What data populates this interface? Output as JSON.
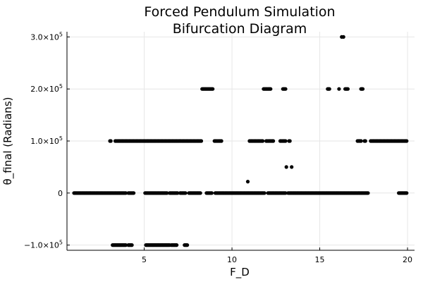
{
  "chart_data": {
    "type": "scatter",
    "title_lines": [
      "Forced Pendulum Simulation",
      "Bifurcation Diagram"
    ],
    "xlabel": "F_D",
    "ylabel": "θ_final (Radians)",
    "xlim": [
      0.6,
      20.4
    ],
    "ylim": [
      -110000,
      310000
    ],
    "grid": true,
    "legend": "none",
    "marker_color": "#000000",
    "x_ticks": [
      {
        "value": 5,
        "label": "5"
      },
      {
        "value": 10,
        "label": "10"
      },
      {
        "value": 15,
        "label": "15"
      },
      {
        "value": 20,
        "label": "20"
      }
    ],
    "y_ticks": [
      {
        "value": -100000,
        "mant": "−1.0×10",
        "exp": "5"
      },
      {
        "value": 0,
        "mant": "0",
        "exp": ""
      },
      {
        "value": 100000,
        "mant": "1.0×10",
        "exp": "5"
      },
      {
        "value": 200000,
        "mant": "2.0×10",
        "exp": "5"
      },
      {
        "value": 300000,
        "mant": "3.0×10",
        "exp": "5"
      }
    ],
    "runs": [
      {
        "y": 0,
        "x_from": 1.0,
        "x_to": 3.95
      },
      {
        "y": 0,
        "x_from": 4.1,
        "x_to": 4.4
      },
      {
        "y": 0,
        "x_from": 5.05,
        "x_to": 6.3
      },
      {
        "y": 0,
        "x_from": 6.45,
        "x_to": 6.9
      },
      {
        "y": 0,
        "x_from": 7.05,
        "x_to": 7.35
      },
      {
        "y": 0,
        "x_from": 7.55,
        "x_to": 8.2
      },
      {
        "y": 0,
        "x_from": 8.55,
        "x_to": 8.85
      },
      {
        "y": 0,
        "x_from": 9.05,
        "x_to": 11.85
      },
      {
        "y": 0,
        "x_from": 12.05,
        "x_to": 13.05
      },
      {
        "y": 0,
        "x_from": 13.2,
        "x_to": 17.75
      },
      {
        "y": 0,
        "x_from": 19.5,
        "x_to": 19.95
      },
      {
        "y": 100000,
        "x_from": 3.05,
        "x_to": 3.1
      },
      {
        "y": 100000,
        "x_from": 3.35,
        "x_to": 8.25
      },
      {
        "y": 100000,
        "x_from": 9.0,
        "x_to": 9.4
      },
      {
        "y": 100000,
        "x_from": 11.0,
        "x_to": 11.75
      },
      {
        "y": 100000,
        "x_from": 11.95,
        "x_to": 12.35
      },
      {
        "y": 100000,
        "x_from": 12.75,
        "x_to": 13.05
      },
      {
        "y": 100000,
        "x_from": 13.25,
        "x_to": 13.3
      },
      {
        "y": 100000,
        "x_from": 17.15,
        "x_to": 17.35
      },
      {
        "y": 100000,
        "x_from": 17.55,
        "x_to": 17.6
      },
      {
        "y": 100000,
        "x_from": 17.9,
        "x_to": 19.95
      },
      {
        "y": 200000,
        "x_from": 8.3,
        "x_to": 8.9
      },
      {
        "y": 200000,
        "x_from": 11.8,
        "x_to": 12.2
      },
      {
        "y": 200000,
        "x_from": 12.9,
        "x_to": 13.05
      },
      {
        "y": 200000,
        "x_from": 15.45,
        "x_to": 15.55
      },
      {
        "y": 200000,
        "x_from": 16.45,
        "x_to": 16.6
      },
      {
        "y": 200000,
        "x_from": 17.35,
        "x_to": 17.45
      },
      {
        "y": -100000,
        "x_from": 3.2,
        "x_to": 3.95
      },
      {
        "y": -100000,
        "x_from": 4.1,
        "x_to": 4.3
      },
      {
        "y": -100000,
        "x_from": 5.1,
        "x_to": 6.45
      },
      {
        "y": -100000,
        "x_from": 6.55,
        "x_to": 6.85
      },
      {
        "y": -100000,
        "x_from": 7.3,
        "x_to": 7.45
      }
    ],
    "points": [
      {
        "x": 10.9,
        "y": 22000
      },
      {
        "x": 13.1,
        "y": 50000
      },
      {
        "x": 13.4,
        "y": 50000
      },
      {
        "x": 16.1,
        "y": 200000
      },
      {
        "x": 16.25,
        "y": 300000
      },
      {
        "x": 16.35,
        "y": 300000
      }
    ]
  }
}
